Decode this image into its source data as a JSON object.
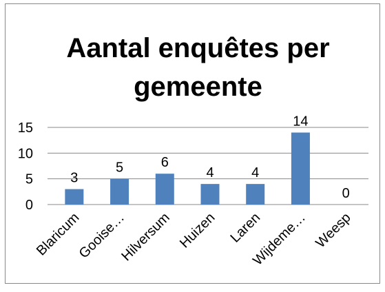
{
  "chart_data": {
    "type": "bar",
    "title": "Aantal enquêtes per gemeente",
    "categories": [
      "Blaricum",
      "Gooise…",
      "Hilversum",
      "Huizen",
      "Laren",
      "Wijdeme…",
      "Weesp"
    ],
    "values": [
      3,
      5,
      6,
      4,
      4,
      14,
      0
    ],
    "color": "#4f81bd",
    "ylim": [
      0,
      15
    ],
    "yticks": [
      0,
      5,
      10,
      15
    ],
    "grid": true
  }
}
